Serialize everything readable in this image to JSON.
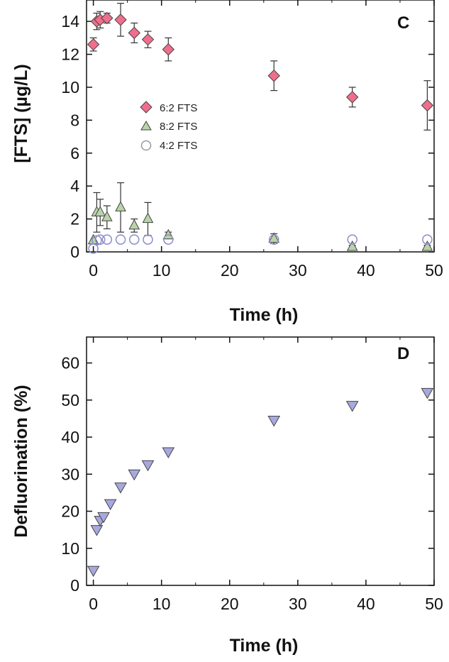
{
  "chart_data": [
    {
      "type": "scatter",
      "panel_label": "C",
      "xlabel": "Time (h)",
      "ylabel": "[FTS] (µg/L)",
      "xlim": [
        -1,
        50
      ],
      "ylim": [
        0,
        15.3
      ],
      "xticks": [
        "0",
        "10",
        "20",
        "30",
        "40",
        "50"
      ],
      "yticks": [
        "0",
        "2",
        "4",
        "6",
        "8",
        "10",
        "12",
        "14"
      ],
      "legend_position": "center-left",
      "series": [
        {
          "name": "6:2 FTS",
          "marker": "diamond",
          "color": "#f06e8c",
          "points": [
            {
              "x": 0,
              "y": 12.6,
              "err": 0.4
            },
            {
              "x": 0.5,
              "y": 14.0,
              "err": 0.5
            },
            {
              "x": 1,
              "y": 14.1,
              "err": 0.5
            },
            {
              "x": 2,
              "y": 14.2,
              "err": 0.3
            },
            {
              "x": 4,
              "y": 14.1,
              "err": 1.0
            },
            {
              "x": 6,
              "y": 13.3,
              "err": 0.6
            },
            {
              "x": 8,
              "y": 12.9,
              "err": 0.5
            },
            {
              "x": 11,
              "y": 12.3,
              "err": 0.7
            },
            {
              "x": 26.5,
              "y": 10.7,
              "err": 0.9
            },
            {
              "x": 38,
              "y": 9.4,
              "err": 0.6
            },
            {
              "x": 49,
              "y": 8.9,
              "err": 1.5
            }
          ]
        },
        {
          "name": "8:2 FTS",
          "marker": "triangle-up",
          "color": "#b8d4a8",
          "points": [
            {
              "x": 0,
              "y": 0.7,
              "err": 0
            },
            {
              "x": 0.5,
              "y": 2.4,
              "err": 1.2
            },
            {
              "x": 1,
              "y": 2.4,
              "err": 0.8
            },
            {
              "x": 2,
              "y": 2.1,
              "err": 0.7
            },
            {
              "x": 4,
              "y": 2.7,
              "err": 1.5
            },
            {
              "x": 6,
              "y": 1.6,
              "err": 0.4
            },
            {
              "x": 8,
              "y": 2.0,
              "err": 1.0
            },
            {
              "x": 11,
              "y": 1.0,
              "err": 0.2
            },
            {
              "x": 26.5,
              "y": 0.8,
              "err": 0.3
            },
            {
              "x": 38,
              "y": 0.3,
              "err": 0.1
            },
            {
              "x": 49,
              "y": 0.3,
              "err": 0.1
            }
          ]
        },
        {
          "name": "4:2 FTS",
          "marker": "circle-open",
          "color": "#8a8ad0",
          "points": [
            {
              "x": 0,
              "y": 0.2,
              "err": 0
            },
            {
              "x": 0.5,
              "y": 0.7,
              "err": 0
            },
            {
              "x": 1,
              "y": 0.75,
              "err": 0
            },
            {
              "x": 2,
              "y": 0.75,
              "err": 0
            },
            {
              "x": 4,
              "y": 0.75,
              "err": 0
            },
            {
              "x": 6,
              "y": 0.75,
              "err": 0
            },
            {
              "x": 8,
              "y": 0.75,
              "err": 0
            },
            {
              "x": 11,
              "y": 0.75,
              "err": 0
            },
            {
              "x": 26.5,
              "y": 0.75,
              "err": 0
            },
            {
              "x": 38,
              "y": 0.75,
              "err": 0
            },
            {
              "x": 49,
              "y": 0.75,
              "err": 0
            }
          ]
        }
      ]
    },
    {
      "type": "scatter",
      "panel_label": "D",
      "xlabel": "Time (h)",
      "ylabel": "Defluorination (%)",
      "xlim": [
        -1,
        50
      ],
      "ylim": [
        0,
        67
      ],
      "xticks": [
        "0",
        "10",
        "20",
        "30",
        "40",
        "50"
      ],
      "yticks": [
        "0",
        "10",
        "20",
        "30",
        "40",
        "50",
        "60"
      ],
      "series": [
        {
          "marker": "triangle-down",
          "color": "#a8a8e0",
          "points": [
            {
              "x": 0,
              "y": 4.0
            },
            {
              "x": 0.5,
              "y": 15.0
            },
            {
              "x": 1,
              "y": 17.5
            },
            {
              "x": 1.5,
              "y": 18.5
            },
            {
              "x": 2.5,
              "y": 22.0
            },
            {
              "x": 4,
              "y": 26.5
            },
            {
              "x": 6,
              "y": 30.0
            },
            {
              "x": 8,
              "y": 32.5
            },
            {
              "x": 11,
              "y": 36.0
            },
            {
              "x": 26.5,
              "y": 44.5
            },
            {
              "x": 38,
              "y": 48.5
            },
            {
              "x": 49,
              "y": 52.0
            }
          ]
        }
      ]
    }
  ]
}
